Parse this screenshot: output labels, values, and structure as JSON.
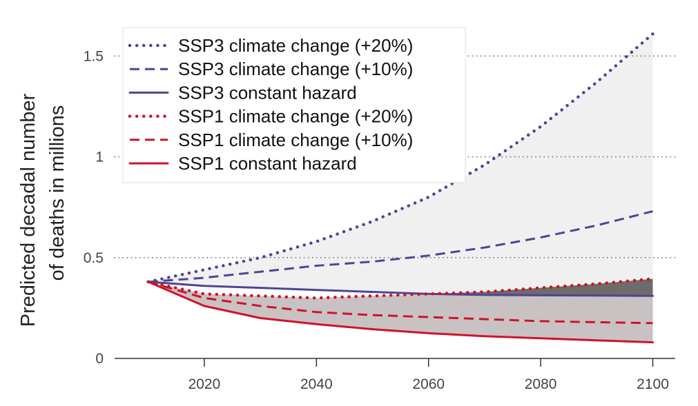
{
  "chart_data": {
    "type": "line",
    "title": "",
    "xlabel": "",
    "ylabel_line1": "Predicted decadal number",
    "ylabel_line2": "of deaths in millions",
    "xlim": [
      2004,
      2104
    ],
    "ylim": [
      0,
      1.6
    ],
    "x_ticks": [
      2020,
      2040,
      2060,
      2080,
      2100
    ],
    "x_tick_labels": [
      "2020",
      "2040",
      "2060",
      "2080",
      "2100"
    ],
    "y_ticks": [
      0,
      0.5,
      1,
      1.5
    ],
    "y_tick_labels": [
      "0",
      "0.5",
      "1",
      "1.5"
    ],
    "gridlines_at": [
      0.5,
      1,
      1.5
    ],
    "x": [
      2010,
      2020,
      2030,
      2040,
      2050,
      2060,
      2070,
      2080,
      2090,
      2100
    ],
    "series": [
      {
        "name": "SSP3 climate change (+20%)",
        "color": "#4b4693",
        "style": "dotted",
        "values": [
          0.38,
          0.44,
          0.5,
          0.58,
          0.68,
          0.8,
          0.96,
          1.15,
          1.37,
          1.61
        ]
      },
      {
        "name": "SSP3 climate change (+10%)",
        "color": "#4b4693",
        "style": "dashed",
        "values": [
          0.38,
          0.4,
          0.43,
          0.46,
          0.48,
          0.51,
          0.55,
          0.6,
          0.66,
          0.73
        ]
      },
      {
        "name": "SSP3 constant hazard",
        "color": "#4b4693",
        "style": "solid",
        "values": [
          0.38,
          0.36,
          0.35,
          0.34,
          0.33,
          0.32,
          0.315,
          0.313,
          0.312,
          0.31
        ]
      },
      {
        "name": "SSP1 climate change (+20%)",
        "color": "#d0112b",
        "style": "dotted",
        "values": [
          0.38,
          0.32,
          0.31,
          0.3,
          0.31,
          0.32,
          0.33,
          0.35,
          0.37,
          0.395
        ]
      },
      {
        "name": "SSP1 climate change (+10%)",
        "color": "#d0112b",
        "style": "dashed",
        "values": [
          0.38,
          0.3,
          0.26,
          0.23,
          0.215,
          0.205,
          0.195,
          0.185,
          0.18,
          0.175
        ]
      },
      {
        "name": "SSP1 constant hazard",
        "color": "#d0112b",
        "style": "solid",
        "values": [
          0.38,
          0.26,
          0.2,
          0.17,
          0.145,
          0.125,
          0.11,
          0.1,
          0.09,
          0.08
        ]
      }
    ],
    "shaded_bands": [
      {
        "between": [
          "SSP3 climate change (+20%)",
          "SSP3 constant hazard"
        ],
        "color": "#f0f0f0"
      },
      {
        "between": [
          "SSP1 climate change (+20%)",
          "SSP1 constant hazard"
        ],
        "color": "#c9c2c2"
      },
      {
        "overlap_color": "#6e6b6b"
      }
    ],
    "legend_position": "top-left"
  }
}
